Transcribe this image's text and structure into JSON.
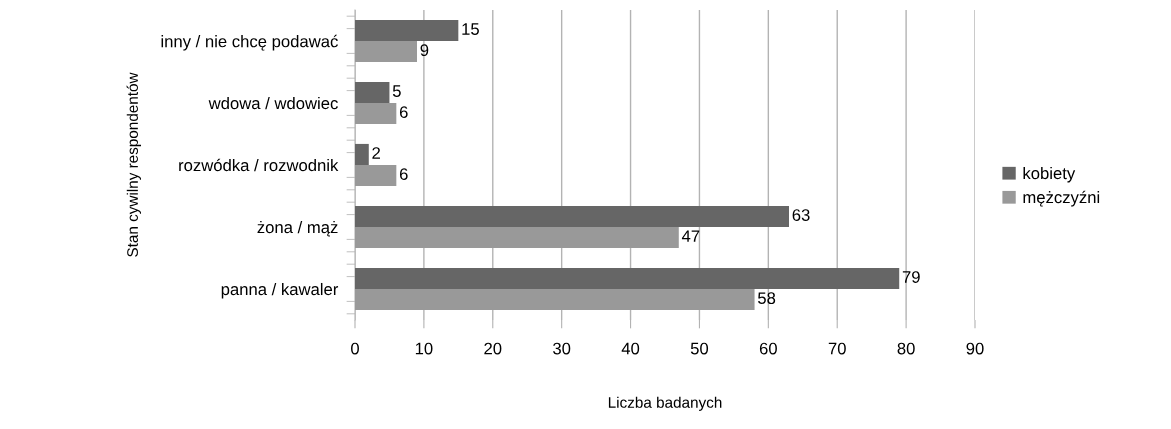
{
  "chart_data": {
    "type": "bar",
    "orientation": "horizontal",
    "xlabel": "Liczba badanych",
    "ylabel": "Stan cywilny respondentów",
    "categories": [
      "inny / nie chcę podawać",
      "wdowa / wdowiec",
      "rozwódka / rozwodnik",
      "żona / mąż",
      "panna / kawaler"
    ],
    "series": [
      {
        "name": "kobiety",
        "color": "#666666",
        "values": [
          15,
          5,
          2,
          63,
          79
        ]
      },
      {
        "name": "mężczyźni",
        "color": "#999999",
        "values": [
          9,
          6,
          6,
          47,
          58
        ]
      }
    ],
    "xlim": [
      0,
      90
    ],
    "xticks": [
      0,
      10,
      20,
      30,
      40,
      50,
      60,
      70,
      80,
      90
    ],
    "grid": "x",
    "legend": "right",
    "data_labels": true
  }
}
